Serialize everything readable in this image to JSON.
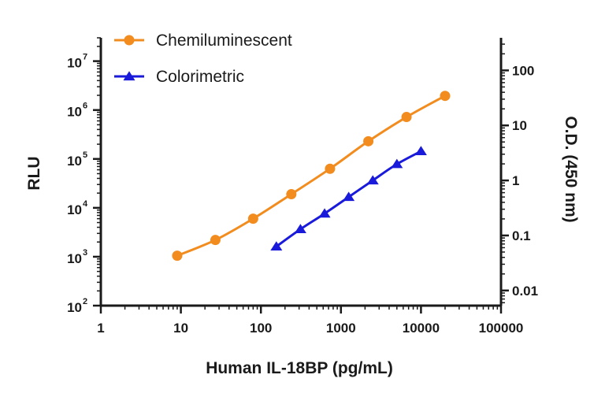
{
  "chart_data": {
    "type": "line",
    "xlabel": "Human IL-18BP (pg/mL)",
    "ylabel_left": "RLU",
    "ylabel_right": "O.D. (450 nm)",
    "x_scale": "log",
    "x_ticks": [
      "1",
      "10",
      "100",
      "1000",
      "10000",
      "100000"
    ],
    "xlim": [
      1,
      100000
    ],
    "y_left_scale": "log",
    "y_left_ticks": [
      {
        "base": "10",
        "exp": "2"
      },
      {
        "base": "10",
        "exp": "3"
      },
      {
        "base": "10",
        "exp": "4"
      },
      {
        "base": "10",
        "exp": "5"
      },
      {
        "base": "10",
        "exp": "6"
      },
      {
        "base": "10",
        "exp": "7"
      }
    ],
    "y_left_lim": [
      100,
      30000000
    ],
    "y_right_scale": "log",
    "y_right_ticks": [
      "0.01",
      "0.1",
      "1",
      "10",
      "100"
    ],
    "y_right_lim": [
      0.00531,
      391
    ],
    "grid": false,
    "legend": "top-left",
    "series": [
      {
        "name": "Chemiluminescent",
        "axis": "left",
        "marker": "circle",
        "color": "#F28C1E",
        "x": [
          9,
          27,
          80,
          240,
          730,
          2200,
          6600,
          20000
        ],
        "y": [
          1050,
          2200,
          6000,
          19000,
          63000,
          230000,
          720000,
          1950000
        ]
      },
      {
        "name": "Colorimetric",
        "axis": "right",
        "marker": "triangle",
        "color": "#1A1ADB",
        "x": [
          156,
          312,
          625,
          1250,
          2500,
          5000,
          10000
        ],
        "y": [
          0.063,
          0.13,
          0.25,
          0.5,
          1.0,
          1.98,
          3.4
        ]
      }
    ]
  }
}
